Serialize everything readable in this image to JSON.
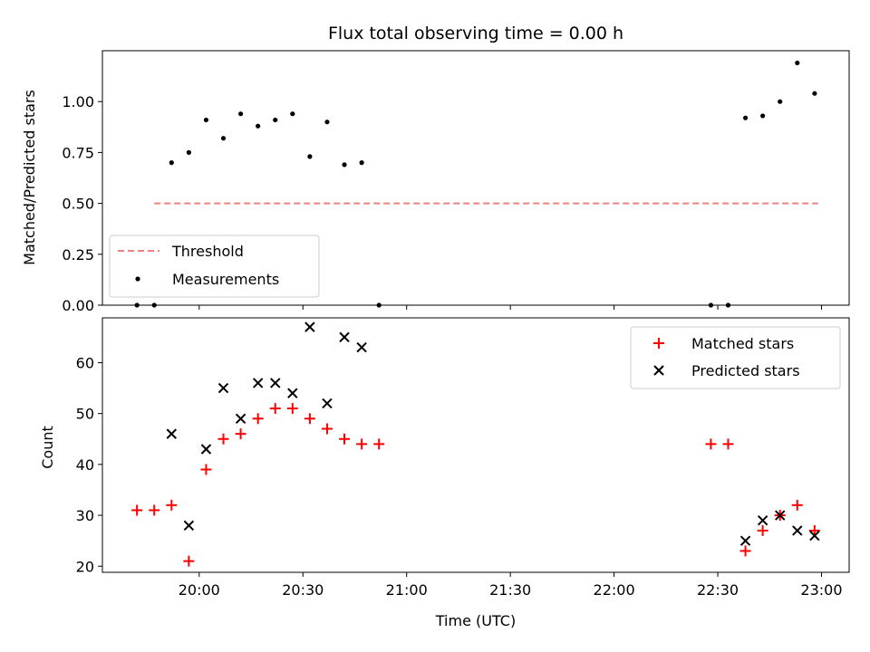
{
  "chart_data": [
    {
      "type": "scatter",
      "title": "Flux total observing time = 0.00 h",
      "xlabel": "",
      "ylabel": "Matched/Predicted stars",
      "xlim": [
        "19:32",
        "23:08"
      ],
      "ylim": [
        0,
        1.25
      ],
      "yticks": [
        "0.00",
        "0.25",
        "0.50",
        "0.75",
        "1.00"
      ],
      "legend_position": "bottom-left",
      "threshold": {
        "name": "Threshold",
        "value": 0.5,
        "x_start": "19:47",
        "x_end": "22:59",
        "color": "#f08080",
        "style": "dashed"
      },
      "series": [
        {
          "name": "Measurements",
          "marker": "dot",
          "color": "#000000",
          "points": [
            [
              "19:42",
              0.0
            ],
            [
              "19:47",
              0.0
            ],
            [
              "19:52",
              0.7
            ],
            [
              "19:57",
              0.75
            ],
            [
              "20:02",
              0.91
            ],
            [
              "20:07",
              0.82
            ],
            [
              "20:12",
              0.94
            ],
            [
              "20:17",
              0.88
            ],
            [
              "20:22",
              0.91
            ],
            [
              "20:27",
              0.94
            ],
            [
              "20:32",
              0.73
            ],
            [
              "20:37",
              0.9
            ],
            [
              "20:42",
              0.69
            ],
            [
              "20:47",
              0.7
            ],
            [
              "20:52",
              0.0
            ],
            [
              "22:28",
              0.0
            ],
            [
              "22:33",
              0.0
            ],
            [
              "22:38",
              0.92
            ],
            [
              "22:43",
              0.93
            ],
            [
              "22:48",
              1.0
            ],
            [
              "22:53",
              1.19
            ],
            [
              "22:58",
              1.04
            ]
          ]
        }
      ]
    },
    {
      "type": "scatter",
      "title": "",
      "xlabel": "Time (UTC)",
      "ylabel": "Count",
      "xlim": [
        "19:32",
        "23:08"
      ],
      "ylim": [
        18.8,
        68.8
      ],
      "yticks": [
        "20",
        "30",
        "40",
        "50",
        "60"
      ],
      "xticks": [
        "20:00",
        "20:30",
        "21:00",
        "21:30",
        "22:00",
        "22:30",
        "23:00"
      ],
      "legend_position": "top-right",
      "series": [
        {
          "name": "Matched stars",
          "marker": "plus",
          "color": "#ff0000",
          "points": [
            [
              "19:42",
              31
            ],
            [
              "19:47",
              31
            ],
            [
              "19:52",
              32
            ],
            [
              "19:57",
              21
            ],
            [
              "20:02",
              39
            ],
            [
              "20:07",
              45
            ],
            [
              "20:12",
              46
            ],
            [
              "20:17",
              49
            ],
            [
              "20:22",
              51
            ],
            [
              "20:27",
              51
            ],
            [
              "20:32",
              49
            ],
            [
              "20:37",
              47
            ],
            [
              "20:42",
              45
            ],
            [
              "20:47",
              44
            ],
            [
              "20:52",
              44
            ],
            [
              "22:28",
              44
            ],
            [
              "22:33",
              44
            ],
            [
              "22:38",
              23
            ],
            [
              "22:43",
              27
            ],
            [
              "22:48",
              30
            ],
            [
              "22:53",
              32
            ],
            [
              "22:58",
              27
            ]
          ]
        },
        {
          "name": "Predicted stars",
          "marker": "x",
          "color": "#000000",
          "points": [
            [
              "19:52",
              46
            ],
            [
              "19:57",
              28
            ],
            [
              "20:02",
              43
            ],
            [
              "20:07",
              55
            ],
            [
              "20:12",
              49
            ],
            [
              "20:17",
              56
            ],
            [
              "20:22",
              56
            ],
            [
              "20:27",
              54
            ],
            [
              "20:32",
              67
            ],
            [
              "20:37",
              52
            ],
            [
              "20:42",
              65
            ],
            [
              "20:47",
              63
            ],
            [
              "22:38",
              25
            ],
            [
              "22:43",
              29
            ],
            [
              "22:48",
              30
            ],
            [
              "22:53",
              27
            ],
            [
              "22:58",
              26
            ]
          ]
        }
      ]
    }
  ]
}
